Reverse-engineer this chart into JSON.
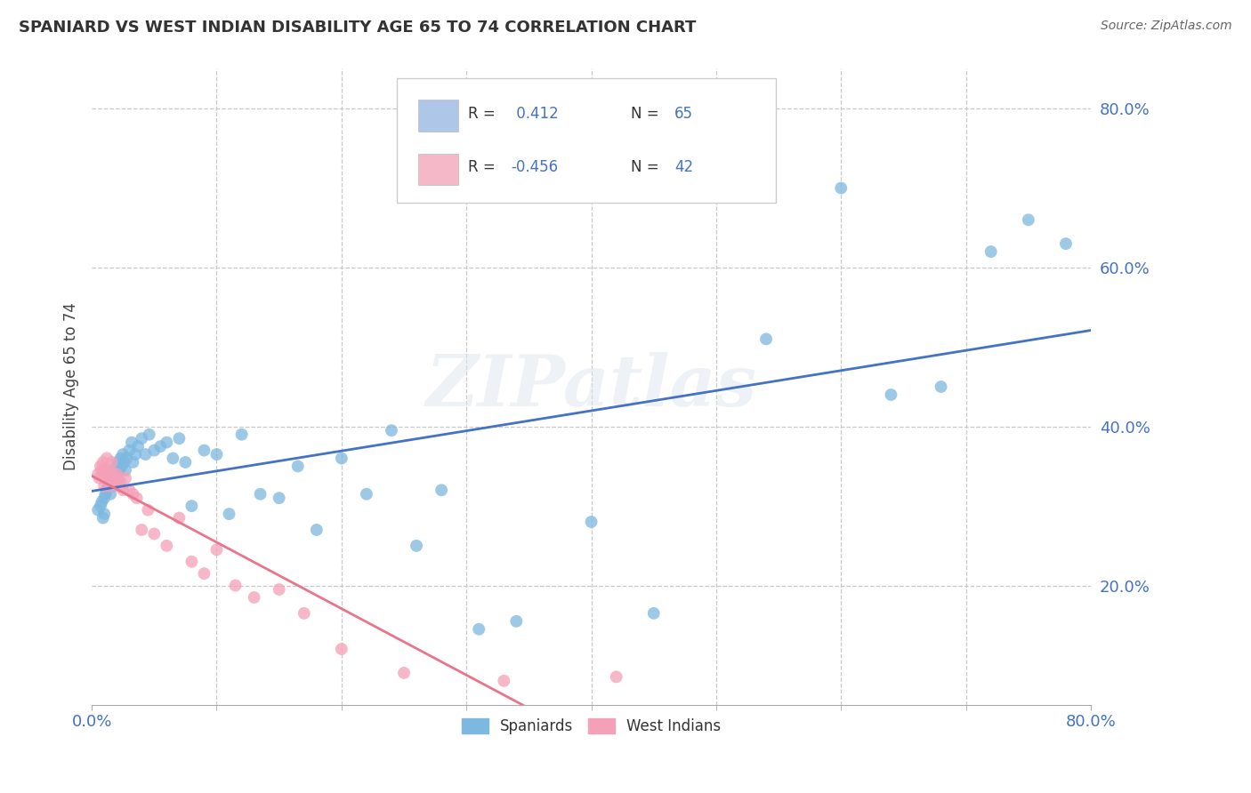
{
  "title": "SPANIARD VS WEST INDIAN DISABILITY AGE 65 TO 74 CORRELATION CHART",
  "source": "Source: ZipAtlas.com",
  "ylabel": "Disability Age 65 to 74",
  "watermark": "ZIPatlas",
  "spaniards_label": "Spaniards",
  "west_indians_label": "West Indians",
  "spaniard_color": "#7db8e0",
  "west_indian_color": "#f4a0b8",
  "spaniard_line_color": "#4472c4",
  "west_indian_line_color": "#e8758a",
  "xlim": [
    0.0,
    0.8
  ],
  "ylim": [
    0.05,
    0.85
  ],
  "background_color": "#ffffff",
  "spaniard_scatter_x": [
    0.005,
    0.007,
    0.008,
    0.009,
    0.01,
    0.01,
    0.011,
    0.012,
    0.013,
    0.014,
    0.015,
    0.015,
    0.016,
    0.017,
    0.018,
    0.019,
    0.02,
    0.02,
    0.021,
    0.022,
    0.023,
    0.024,
    0.025,
    0.026,
    0.027,
    0.028,
    0.03,
    0.032,
    0.033,
    0.035,
    0.037,
    0.04,
    0.043,
    0.046,
    0.05,
    0.055,
    0.06,
    0.065,
    0.07,
    0.075,
    0.08,
    0.09,
    0.1,
    0.11,
    0.12,
    0.135,
    0.15,
    0.165,
    0.18,
    0.2,
    0.22,
    0.24,
    0.26,
    0.28,
    0.31,
    0.34,
    0.4,
    0.45,
    0.54,
    0.6,
    0.64,
    0.68,
    0.72,
    0.75,
    0.78
  ],
  "spaniard_scatter_y": [
    0.295,
    0.3,
    0.305,
    0.285,
    0.31,
    0.29,
    0.315,
    0.32,
    0.325,
    0.33,
    0.34,
    0.315,
    0.345,
    0.325,
    0.335,
    0.33,
    0.34,
    0.35,
    0.355,
    0.345,
    0.36,
    0.35,
    0.365,
    0.355,
    0.345,
    0.36,
    0.37,
    0.38,
    0.355,
    0.365,
    0.375,
    0.385,
    0.365,
    0.39,
    0.37,
    0.375,
    0.38,
    0.36,
    0.385,
    0.355,
    0.3,
    0.37,
    0.365,
    0.29,
    0.39,
    0.315,
    0.31,
    0.35,
    0.27,
    0.36,
    0.315,
    0.395,
    0.25,
    0.32,
    0.145,
    0.155,
    0.28,
    0.165,
    0.51,
    0.7,
    0.44,
    0.45,
    0.62,
    0.66,
    0.63
  ],
  "west_indian_scatter_x": [
    0.005,
    0.006,
    0.007,
    0.008,
    0.009,
    0.01,
    0.01,
    0.011,
    0.012,
    0.013,
    0.014,
    0.015,
    0.015,
    0.016,
    0.017,
    0.018,
    0.019,
    0.02,
    0.021,
    0.022,
    0.023,
    0.025,
    0.027,
    0.03,
    0.033,
    0.036,
    0.04,
    0.045,
    0.05,
    0.06,
    0.07,
    0.08,
    0.09,
    0.1,
    0.115,
    0.13,
    0.15,
    0.17,
    0.2,
    0.25,
    0.33,
    0.42
  ],
  "west_indian_scatter_y": [
    0.34,
    0.335,
    0.35,
    0.345,
    0.355,
    0.34,
    0.325,
    0.345,
    0.36,
    0.34,
    0.33,
    0.345,
    0.325,
    0.355,
    0.34,
    0.335,
    0.33,
    0.34,
    0.335,
    0.325,
    0.33,
    0.32,
    0.335,
    0.32,
    0.315,
    0.31,
    0.27,
    0.295,
    0.265,
    0.25,
    0.285,
    0.23,
    0.215,
    0.245,
    0.2,
    0.185,
    0.195,
    0.165,
    0.12,
    0.09,
    0.08,
    0.085
  ],
  "ytick_labels": [
    "20.0%",
    "40.0%",
    "60.0%",
    "80.0%"
  ],
  "ytick_values": [
    0.2,
    0.4,
    0.6,
    0.8
  ],
  "tick_color": "#4472c4",
  "grid_color": "#c8c8c8",
  "grid_style": "--",
  "legend_box_color": "#aec6e8",
  "legend_pink_color": "#f4b8c8",
  "legend_r_black": "R = ",
  "legend_r1_val": " 0.412",
  "legend_r2_val": "-0.456",
  "legend_n1_val": "65",
  "legend_n2_val": "42"
}
